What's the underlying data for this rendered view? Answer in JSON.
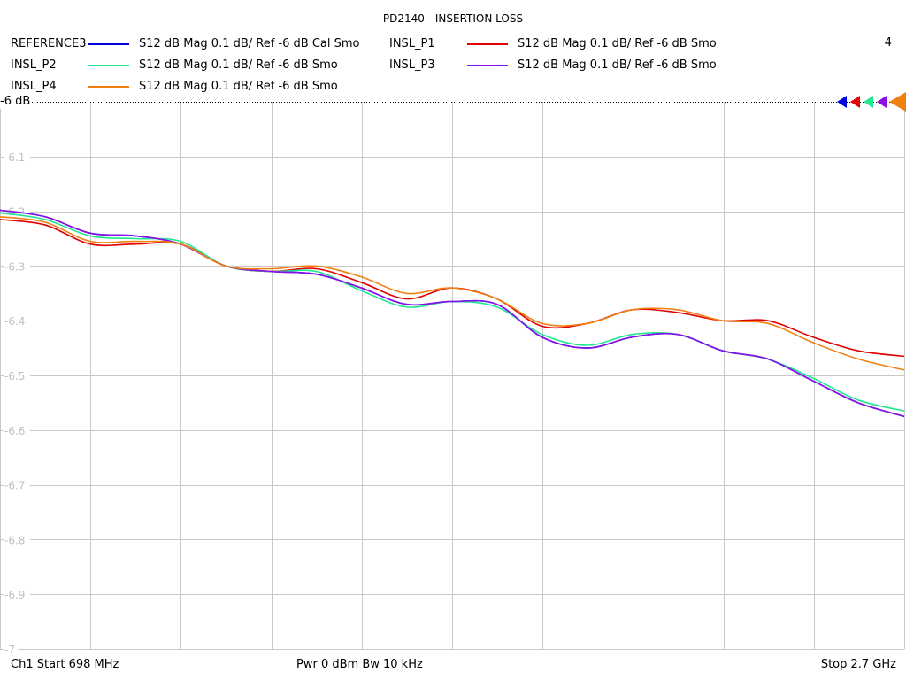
{
  "header": {
    "title": "PD2140 - INSERTION LOSS",
    "channel_number": "4"
  },
  "legend": [
    {
      "name": "REFERENCE3",
      "color": "#0000e0",
      "desc": "S12  dB Mag  0.1 dB/ Ref -6 dB  Cal Smo"
    },
    {
      "name": "INSL_P1",
      "color": "#e00000",
      "desc": "S12  dB Mag  0.1 dB/ Ref -6 dB  Smo"
    },
    {
      "name": "INSL_P2",
      "color": "#20e890",
      "desc": "S12  dB Mag  0.1 dB/ Ref -6 dB  Smo"
    },
    {
      "name": "INSL_P3",
      "color": "#8a10e8",
      "desc": "S12  dB Mag  0.1 dB/ Ref -6 dB  Smo"
    },
    {
      "name": "INSL_P4",
      "color": "#f08010",
      "desc": "S12  dB Mag  0.1 dB/ Ref -6 dB  Smo"
    }
  ],
  "ref_label": "-6 dB",
  "footer": {
    "start": "Ch1  Start  698 MHz",
    "center": "Pwr  0 dBm  Bw  10 kHz",
    "stop": "Stop  2.7 GHz"
  },
  "chart_data": {
    "type": "line",
    "title": "PD2140 - INSERTION LOSS",
    "xlabel": "Frequency",
    "ylabel": "S12 dB Mag",
    "xlim": [
      698,
      2700
    ],
    "x_unit": "MHz",
    "ylim": [
      -7,
      -6
    ],
    "yticks": [
      "-6 dB",
      "-6.1",
      "-6.2",
      "-6.3",
      "-6.4",
      "-6.5",
      "-6.6",
      "-6.7",
      "-6.8",
      "-6.9",
      "-7"
    ],
    "grid": true,
    "x_divisions": 10,
    "y_divisions": 10,
    "x": [
      698,
      798,
      898,
      998,
      1098,
      1198,
      1298,
      1398,
      1498,
      1598,
      1698,
      1798,
      1898,
      1998,
      2098,
      2198,
      2298,
      2398,
      2498,
      2598,
      2700
    ],
    "series": [
      {
        "name": "REFERENCE3",
        "color": "#0000e0",
        "values": [
          -6.198,
          -6.21,
          -6.24,
          -6.245,
          -6.26,
          -6.3,
          -6.31,
          -6.315,
          -6.34,
          -6.37,
          -6.365,
          -6.37,
          -6.43,
          -6.45,
          -6.43,
          -6.425,
          -6.455,
          -6.47,
          -6.51,
          -6.55,
          -6.575
        ]
      },
      {
        "name": "INSL_P1",
        "color": "#e00000",
        "values": [
          -6.215,
          -6.225,
          -6.26,
          -6.26,
          -6.26,
          -6.3,
          -6.31,
          -6.305,
          -6.33,
          -6.36,
          -6.34,
          -6.36,
          -6.41,
          -6.405,
          -6.38,
          -6.385,
          -6.4,
          -6.4,
          -6.43,
          -6.455,
          -6.465
        ]
      },
      {
        "name": "INSL_P2",
        "color": "#20e890",
        "values": [
          -6.203,
          -6.215,
          -6.245,
          -6.25,
          -6.255,
          -6.3,
          -6.31,
          -6.31,
          -6.345,
          -6.375,
          -6.365,
          -6.375,
          -6.425,
          -6.445,
          -6.425,
          -6.425,
          -6.455,
          -6.47,
          -6.505,
          -6.545,
          -6.565
        ]
      },
      {
        "name": "INSL_P3",
        "color": "#8a10e8",
        "values": [
          -6.198,
          -6.21,
          -6.24,
          -6.245,
          -6.26,
          -6.3,
          -6.31,
          -6.315,
          -6.34,
          -6.37,
          -6.365,
          -6.37,
          -6.43,
          -6.45,
          -6.43,
          -6.425,
          -6.455,
          -6.47,
          -6.51,
          -6.55,
          -6.575
        ]
      },
      {
        "name": "INSL_P4",
        "color": "#f08010",
        "values": [
          -6.21,
          -6.22,
          -6.255,
          -6.255,
          -6.26,
          -6.3,
          -6.305,
          -6.3,
          -6.32,
          -6.35,
          -6.34,
          -6.36,
          -6.405,
          -6.405,
          -6.38,
          -6.38,
          -6.4,
          -6.405,
          -6.44,
          -6.47,
          -6.49
        ]
      }
    ]
  }
}
